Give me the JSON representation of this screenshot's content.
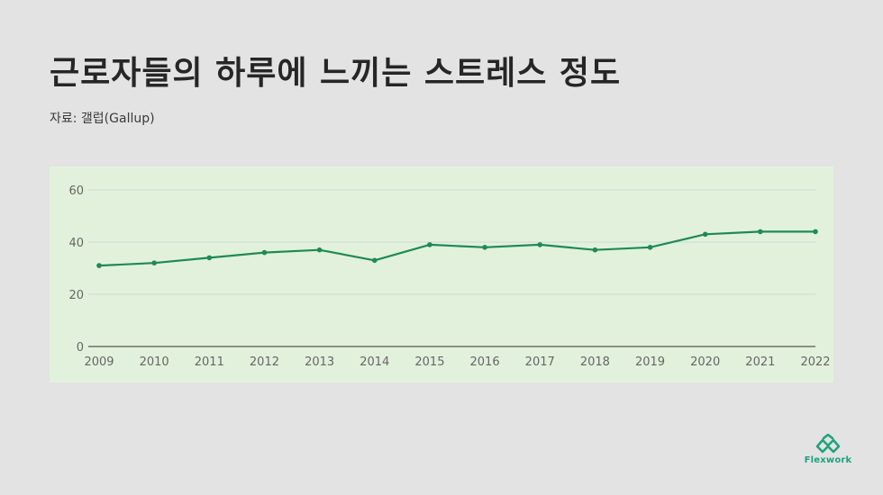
{
  "header": {
    "title": "근로자들의 하루에 느끼는 스트레스 정도",
    "source": "자료: 갤럽(Gallup)"
  },
  "logo": {
    "text": "Flexwork",
    "icon": "flexwork-logo-icon"
  },
  "colors": {
    "panel_bg": "#e2f1dc",
    "line": "#1e8a55",
    "grid": "#cfdccb",
    "axis": "#555555",
    "tick_text": "#666666",
    "brand": "#1fa37a"
  },
  "chart_data": {
    "type": "line",
    "title": "",
    "xlabel": "",
    "ylabel": "",
    "x": [
      "2009",
      "2010",
      "2011",
      "2012",
      "2013",
      "2014",
      "2015",
      "2016",
      "2017",
      "2018",
      "2019",
      "2020",
      "2021",
      "2022"
    ],
    "series": [
      {
        "values": [
          31,
          32,
          34,
          36,
          37,
          33,
          39,
          38,
          39,
          37,
          38,
          43,
          44,
          44
        ]
      }
    ],
    "ylim": [
      0,
      60
    ],
    "yticks": [
      0,
      20,
      40,
      60
    ],
    "grid": true,
    "legend": "none"
  }
}
